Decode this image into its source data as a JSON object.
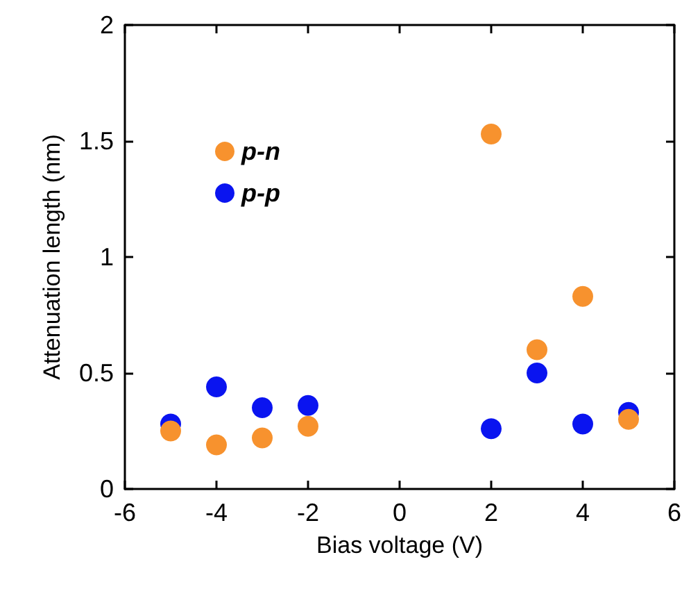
{
  "chart_data": {
    "type": "scatter",
    "xlabel": "Bias voltage (V)",
    "ylabel": "Attenuation length (nm)",
    "x": [
      -5,
      -4,
      -3,
      -2,
      2,
      3,
      4,
      5
    ],
    "series": [
      {
        "name": "p-n",
        "color": "#f7922e",
        "values": [
          0.25,
          0.19,
          0.22,
          0.27,
          1.53,
          0.6,
          0.83,
          0.3
        ]
      },
      {
        "name": "p-p",
        "color": "#0a14f0",
        "values": [
          0.28,
          0.44,
          0.35,
          0.36,
          0.26,
          0.5,
          0.28,
          0.33
        ]
      }
    ],
    "xlim": [
      -6,
      6
    ],
    "xticks": [
      -6,
      -4,
      -2,
      0,
      2,
      4,
      6
    ],
    "ylim": [
      0,
      2
    ],
    "yticks": [
      0,
      0.5,
      1,
      1.5,
      2
    ],
    "grid": false,
    "legend": "top left",
    "marker": "circle"
  }
}
